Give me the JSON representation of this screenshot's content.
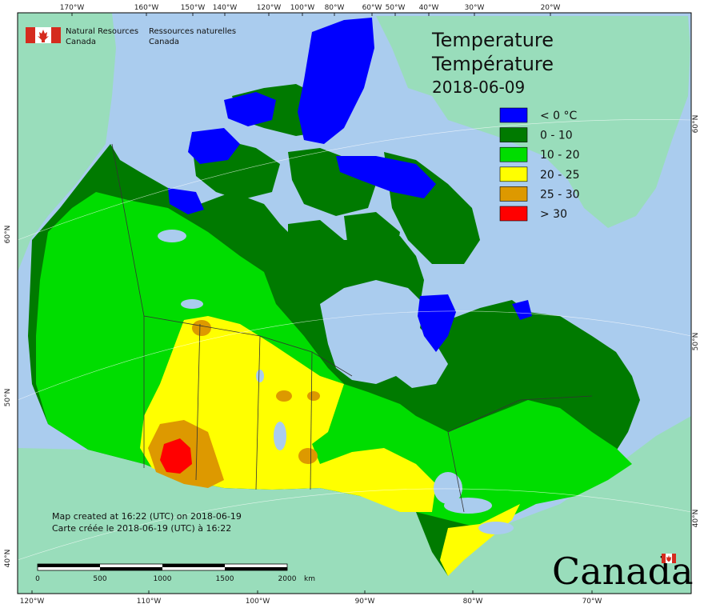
{
  "header": {
    "dept_en_line1": "Natural Resources",
    "dept_en_line2": "Canada",
    "dept_fr_line1": "Ressources naturelles",
    "dept_fr_line2": "Canada"
  },
  "title": {
    "en": "Temperature",
    "fr": "Température",
    "date": "2018-06-09"
  },
  "legend": [
    {
      "label": "< 0 °C",
      "color": "#0000ff"
    },
    {
      "label": "0 - 10",
      "color": "#007a00"
    },
    {
      "label": "10 - 20",
      "color": "#00dd00"
    },
    {
      "label": "20 - 25",
      "color": "#ffff00"
    },
    {
      "label": "25 - 30",
      "color": "#dd9900"
    },
    {
      "label": "> 30",
      "color": "#ff0000"
    }
  ],
  "top_ticks": [
    "170°W",
    "160°W",
    "150°W",
    "140°W",
    "120°W",
    "100°W",
    "80°W",
    "60°W",
    "50°W",
    "40°W",
    "30°W",
    "20°W"
  ],
  "bottom_ticks": [
    "120°W",
    "110°W",
    "100°W",
    "90°W",
    "80°W",
    "70°W"
  ],
  "left_ticks": [
    "60°N",
    "50°N",
    "40°N"
  ],
  "right_ticks": [
    "60°N",
    "50°N",
    "40°N"
  ],
  "notes": {
    "line1": "Map created at 16:22 (UTC) on 2018-06-19",
    "line2": "Carte créée le 2018-06-19 (UTC) à 16:22"
  },
  "scale": {
    "labels": [
      "0",
      "500",
      "1000",
      "1500",
      "2000"
    ],
    "unit": "km"
  },
  "wordmark": "Canada",
  "colors": {
    "ocean": "#aaccee",
    "foreign_land": "#99ddbb",
    "frame": "#000000"
  }
}
